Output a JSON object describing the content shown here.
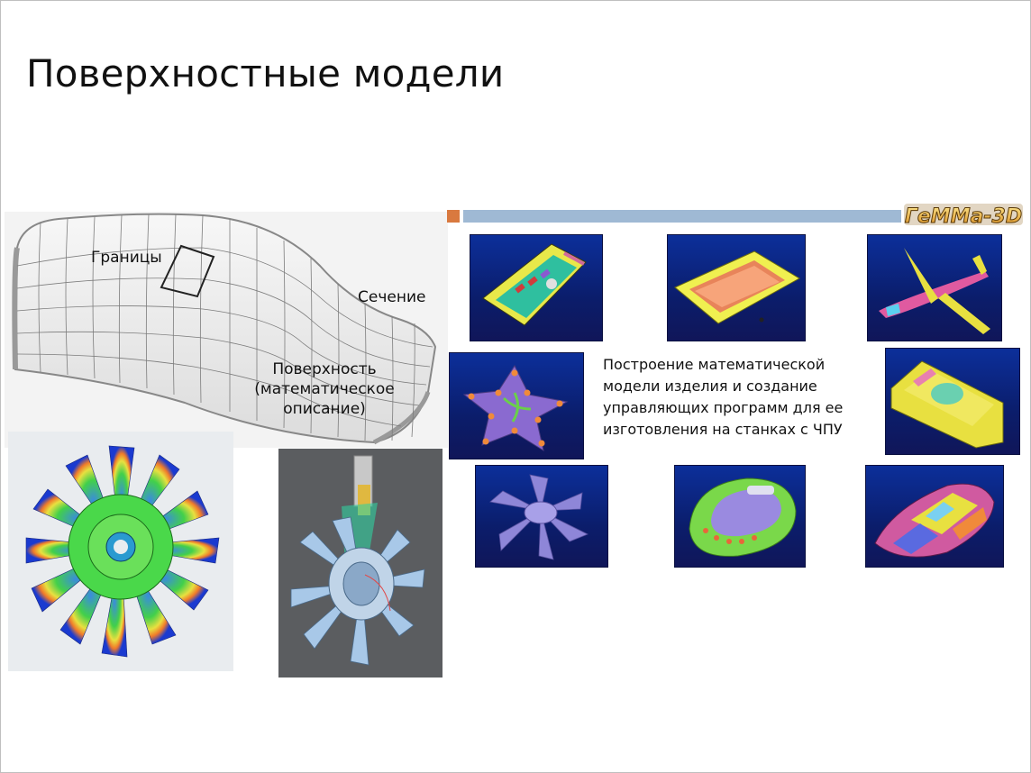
{
  "slide": {
    "title": "Поверхностные модели"
  },
  "wireframe": {
    "labels": {
      "borders": "Границы",
      "section": "Сечение",
      "surface_line1": "Поверхность",
      "surface_line2": "(математическое",
      "surface_line3": "описание)"
    }
  },
  "logo": {
    "text": "ГеММа-3D"
  },
  "description": {
    "text": "Построение математической модели изделия и создание управляющих программ для ее изготовления на станках с ЧПУ"
  },
  "colors": {
    "accent_square": "#d9793f",
    "accent_bar": "#9fb9d4",
    "thumb_background": "#0b1d6b"
  }
}
